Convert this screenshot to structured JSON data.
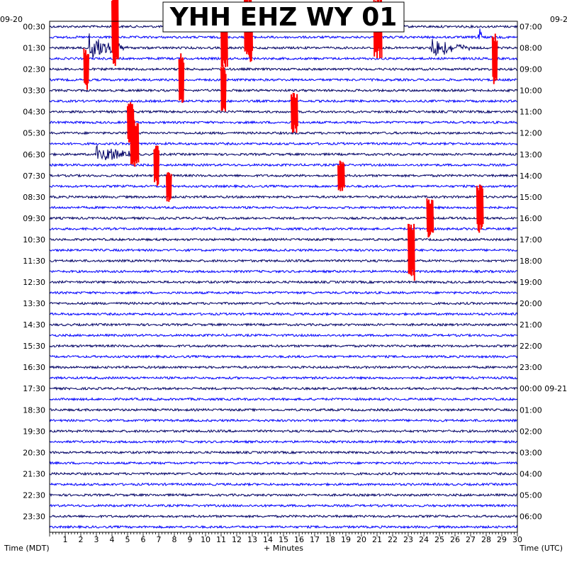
{
  "chart_data": {
    "type": "line",
    "title": "YHH EHZ WY 01",
    "left_date": "09-20",
    "right_date": "09-2",
    "left_axis_title": "Time (MDT)",
    "right_axis_title": "Time (UTC)",
    "xlabel": "+ Minutes",
    "x_ticks": [
      "1",
      "2",
      "3",
      "4",
      "5",
      "6",
      "7",
      "8",
      "9",
      "10",
      "11",
      "12",
      "13",
      "14",
      "15",
      "16",
      "17",
      "18",
      "19",
      "20",
      "21",
      "22",
      "23",
      "24",
      "25",
      "26",
      "27",
      "28",
      "29",
      "30"
    ],
    "xlim": [
      0,
      30
    ],
    "rows_per_hour": 2,
    "trace_colors": [
      "#000066",
      "#0000ff"
    ],
    "event_color": "#ff0000",
    "left_labels": [
      "00:30",
      "01:30",
      "02:30",
      "03:30",
      "04:30",
      "05:30",
      "06:30",
      "07:30",
      "08:30",
      "09:30",
      "10:30",
      "11:30",
      "12:30",
      "13:30",
      "14:30",
      "15:30",
      "16:30",
      "17:30",
      "18:30",
      "19:30",
      "20:30",
      "21:30",
      "22:30",
      "23:30"
    ],
    "right_labels": [
      "07:00",
      "08:00",
      "09:00",
      "10:00",
      "11:00",
      "12:00",
      "13:00",
      "14:00",
      "15:00",
      "16:00",
      "17:00",
      "18:00",
      "19:00",
      "20:00",
      "21:00",
      "22:00",
      "23:00",
      "00:00 09-21",
      "01:00",
      "02:00",
      "03:00",
      "04:00",
      "05:00",
      "06:00"
    ],
    "events": [
      {
        "row": 0,
        "minute": 4.0,
        "amp": 4.0,
        "dur": 0.4,
        "color": "red"
      },
      {
        "row": 0,
        "minute": 12.5,
        "amp": 3.5,
        "dur": 0.5,
        "color": "red"
      },
      {
        "row": 0,
        "minute": 20.8,
        "amp": 3.0,
        "dur": 0.5,
        "color": "red"
      },
      {
        "row": 1,
        "minute": 11.0,
        "amp": 3.0,
        "dur": 0.4,
        "color": "red"
      },
      {
        "row": 1,
        "minute": 27.5,
        "amp": 2.0,
        "dur": 0.3,
        "color": "blue"
      },
      {
        "row": 2,
        "minute": 2.5,
        "amp": 1.5,
        "dur": 2.5,
        "color": "blue"
      },
      {
        "row": 2,
        "minute": 24.5,
        "amp": 1.2,
        "dur": 2.5,
        "color": "blue"
      },
      {
        "row": 3,
        "minute": 28.4,
        "amp": 2.5,
        "dur": 0.3,
        "color": "red"
      },
      {
        "row": 4,
        "minute": 2.2,
        "amp": 2.0,
        "dur": 0.3,
        "color": "red"
      },
      {
        "row": 5,
        "minute": 8.3,
        "amp": 2.5,
        "dur": 0.3,
        "color": "red"
      },
      {
        "row": 6,
        "minute": 11.0,
        "amp": 2.5,
        "dur": 0.3,
        "color": "red"
      },
      {
        "row": 8,
        "minute": 15.5,
        "amp": 2.0,
        "dur": 0.4,
        "color": "red"
      },
      {
        "row": 9,
        "minute": 5.0,
        "amp": 2.0,
        "dur": 0.4,
        "color": "red"
      },
      {
        "row": 11,
        "minute": 5.2,
        "amp": 2.5,
        "dur": 0.5,
        "color": "red"
      },
      {
        "row": 12,
        "minute": 3.0,
        "amp": 1.2,
        "dur": 2.5,
        "color": "blue"
      },
      {
        "row": 13,
        "minute": 6.7,
        "amp": 2.0,
        "dur": 0.3,
        "color": "red"
      },
      {
        "row": 14,
        "minute": 18.5,
        "amp": 1.5,
        "dur": 0.4,
        "color": "red"
      },
      {
        "row": 15,
        "minute": 7.5,
        "amp": 1.5,
        "dur": 0.3,
        "color": "red"
      },
      {
        "row": 17,
        "minute": 27.4,
        "amp": 2.5,
        "dur": 0.4,
        "color": "red"
      },
      {
        "row": 18,
        "minute": 24.2,
        "amp": 2.0,
        "dur": 0.4,
        "color": "red"
      },
      {
        "row": 21,
        "minute": 23.0,
        "amp": 3.0,
        "dur": 0.4,
        "color": "red"
      }
    ]
  }
}
